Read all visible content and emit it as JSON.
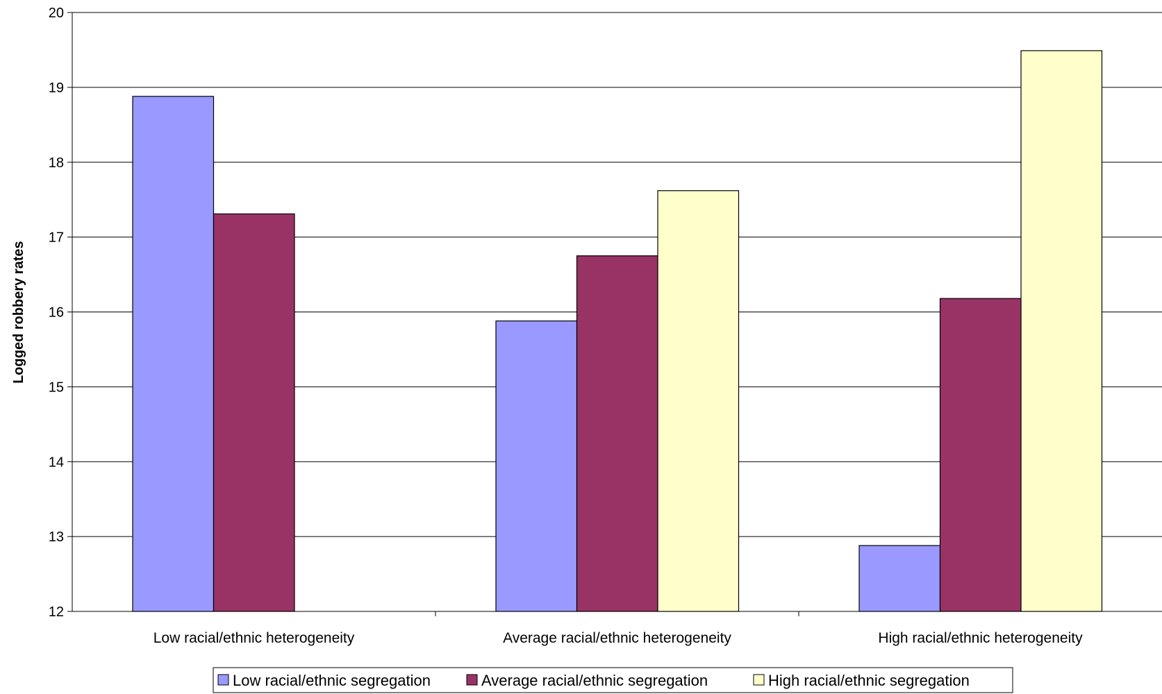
{
  "chart_data": {
    "type": "bar",
    "title": "",
    "xlabel": "",
    "ylabel": "Logged robbery rates",
    "ylim": [
      12,
      20
    ],
    "yticks": [
      12,
      13,
      14,
      15,
      16,
      17,
      18,
      19,
      20
    ],
    "grid": true,
    "legend_position": "bottom",
    "categories": [
      "Low racial/ethnic heterogeneity",
      "Average racial/ethnic heterogeneity",
      "High racial/ethnic heterogeneity"
    ],
    "series": [
      {
        "name": "Low racial/ethnic segregation",
        "color": "#9999ff",
        "values": [
          18.88,
          15.88,
          12.88
        ]
      },
      {
        "name": "Average racial/ethnic segregation",
        "color": "#993366",
        "values": [
          17.31,
          16.75,
          16.18
        ]
      },
      {
        "name": "High racial/ethnic segregation",
        "color": "#ffffcc",
        "values": [
          null,
          17.62,
          19.49
        ]
      }
    ]
  }
}
